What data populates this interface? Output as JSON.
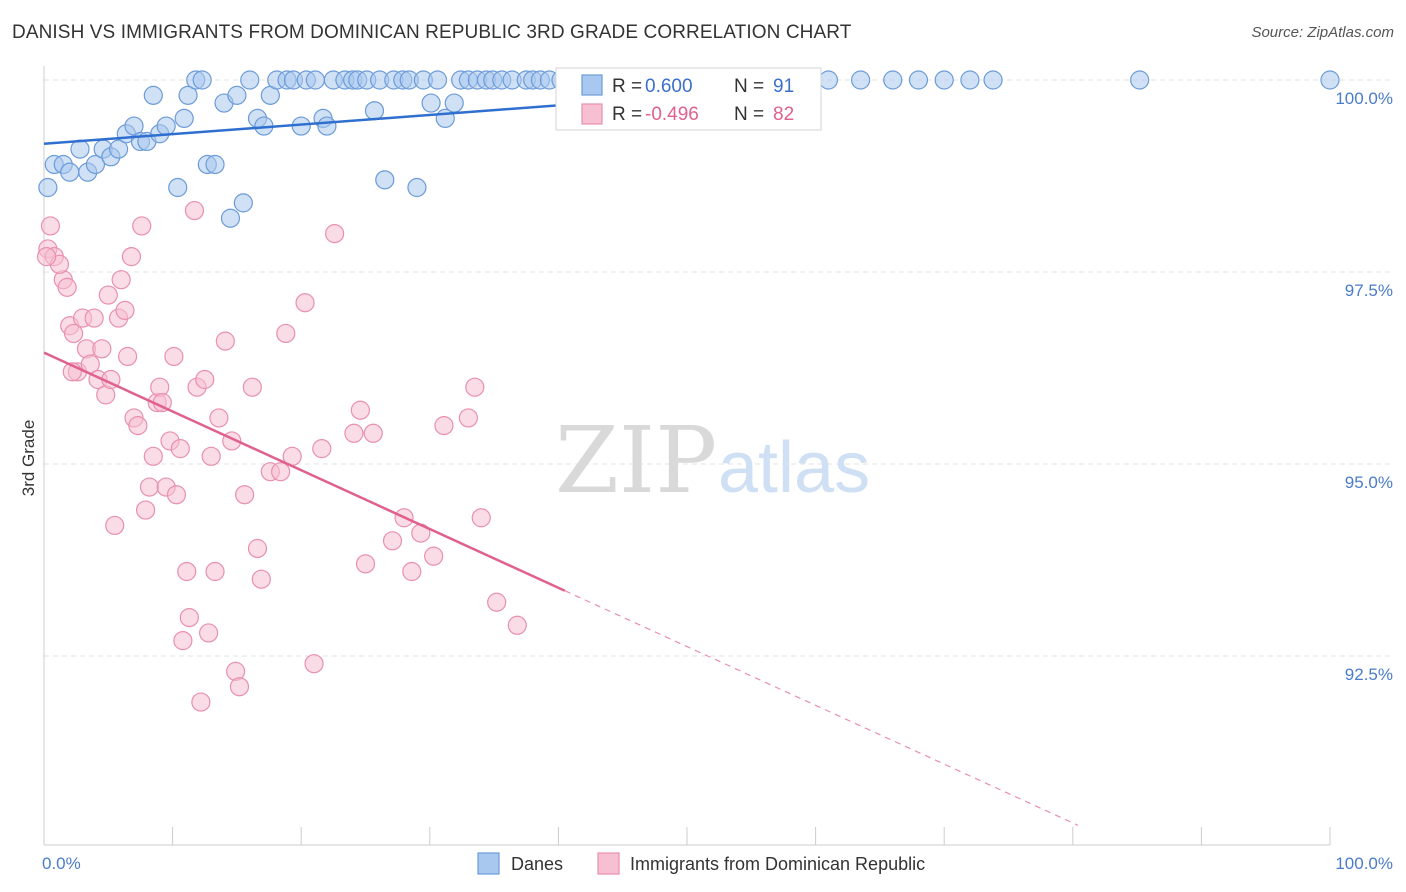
{
  "title": "DANISH VS IMMIGRANTS FROM DOMINICAN REPUBLIC 3RD GRADE CORRELATION CHART",
  "source": "Source: ZipAtlas.com",
  "watermark": {
    "zip": "ZIP",
    "atlas": "atlas"
  },
  "colors": {
    "blue_fill": "#a9c8ef",
    "blue_stroke": "#6b9bd8",
    "blue_line": "#2f6fcf",
    "pink_fill": "#f6bfd2",
    "pink_stroke": "#e98fb0",
    "pink_line": "#e0608e",
    "grid": "#e3e3e3",
    "tick_text": "#4a7cc9"
  },
  "stats": {
    "blue": {
      "r_label": "R =",
      "r_value": " 0.600",
      "n_label": "N =",
      "n_value": "91"
    },
    "pink": {
      "r_label": "R =",
      "r_value": "-0.496",
      "n_label": "N =",
      "n_value": "82"
    }
  },
  "chart_data": {
    "type": "scatter",
    "title": "DANISH VS IMMIGRANTS FROM DOMINICAN REPUBLIC 3RD GRADE CORRELATION CHART",
    "xlabel": "",
    "ylabel": "3rd Grade",
    "xlim": [
      0,
      100
    ],
    "ylim": [
      90.2,
      100.2
    ],
    "x_tick_labels": [
      {
        "value": 0,
        "label": "0.0%"
      },
      {
        "value": 100,
        "label": "100.0%"
      }
    ],
    "y_ticks": [
      {
        "value": 100.0,
        "label": "100.0%"
      },
      {
        "value": 97.5,
        "label": "97.5%"
      },
      {
        "value": 95.0,
        "label": "95.0%"
      },
      {
        "value": 92.5,
        "label": "92.5%"
      }
    ],
    "x_minor_ticks": [
      10,
      20,
      30,
      40,
      50,
      60,
      70,
      80,
      90
    ],
    "grid": true,
    "legend_position": "bottom",
    "series": [
      {
        "name": "Danes",
        "color": "#a9c8ef",
        "trend": {
          "x": [
            0,
            60
          ],
          "y": [
            99.17,
            99.92
          ],
          "extension_x": null
        },
        "points": [
          [
            0.3,
            98.6
          ],
          [
            0.8,
            98.9
          ],
          [
            1.5,
            98.9
          ],
          [
            2.0,
            98.8
          ],
          [
            2.8,
            99.1
          ],
          [
            3.4,
            98.8
          ],
          [
            4.0,
            98.9
          ],
          [
            4.6,
            99.1
          ],
          [
            5.2,
            99.0
          ],
          [
            5.8,
            99.1
          ],
          [
            6.4,
            99.3
          ],
          [
            7.0,
            99.4
          ],
          [
            7.5,
            99.2
          ],
          [
            8.0,
            99.2
          ],
          [
            8.5,
            99.8
          ],
          [
            9.0,
            99.3
          ],
          [
            9.5,
            99.4
          ],
          [
            10.4,
            98.6
          ],
          [
            10.9,
            99.5
          ],
          [
            11.2,
            99.8
          ],
          [
            11.8,
            100.0
          ],
          [
            12.3,
            100.0
          ],
          [
            12.7,
            98.9
          ],
          [
            13.3,
            98.9
          ],
          [
            14.0,
            99.7
          ],
          [
            14.5,
            98.2
          ],
          [
            15.0,
            99.8
          ],
          [
            15.5,
            98.4
          ],
          [
            16.0,
            100.0
          ],
          [
            16.6,
            99.5
          ],
          [
            17.1,
            99.4
          ],
          [
            17.6,
            99.8
          ],
          [
            18.1,
            100.0
          ],
          [
            18.9,
            100.0
          ],
          [
            19.4,
            100.0
          ],
          [
            20.0,
            99.4
          ],
          [
            20.4,
            100.0
          ],
          [
            21.1,
            100.0
          ],
          [
            21.7,
            99.5
          ],
          [
            22.0,
            99.4
          ],
          [
            22.5,
            100.0
          ],
          [
            23.4,
            100.0
          ],
          [
            24.0,
            100.0
          ],
          [
            24.4,
            100.0
          ],
          [
            25.1,
            100.0
          ],
          [
            25.7,
            99.6
          ],
          [
            26.1,
            100.0
          ],
          [
            26.5,
            98.7
          ],
          [
            27.2,
            100.0
          ],
          [
            27.9,
            100.0
          ],
          [
            28.4,
            100.0
          ],
          [
            29.0,
            98.6
          ],
          [
            29.5,
            100.0
          ],
          [
            30.1,
            99.7
          ],
          [
            30.6,
            100.0
          ],
          [
            31.2,
            99.5
          ],
          [
            31.9,
            99.7
          ],
          [
            32.4,
            100.0
          ],
          [
            33.0,
            100.0
          ],
          [
            33.7,
            100.0
          ],
          [
            34.4,
            100.0
          ],
          [
            34.9,
            100.0
          ],
          [
            35.6,
            100.0
          ],
          [
            36.4,
            100.0
          ],
          [
            37.5,
            100.0
          ],
          [
            38.0,
            100.0
          ],
          [
            38.6,
            100.0
          ],
          [
            39.3,
            100.0
          ],
          [
            40.2,
            100.0
          ],
          [
            41.0,
            100.0
          ],
          [
            42.0,
            100.0
          ],
          [
            43.0,
            100.0
          ],
          [
            44.5,
            100.0
          ],
          [
            46.0,
            100.0
          ],
          [
            47.5,
            100.0
          ],
          [
            49.0,
            100.0
          ],
          [
            50.5,
            100.0
          ],
          [
            52.0,
            100.0
          ],
          [
            53.5,
            100.0
          ],
          [
            55.0,
            100.0
          ],
          [
            57.0,
            100.0
          ],
          [
            59.0,
            100.0
          ],
          [
            61.0,
            100.0
          ],
          [
            63.5,
            100.0
          ],
          [
            66.0,
            100.0
          ],
          [
            68.0,
            100.0
          ],
          [
            70.0,
            100.0
          ],
          [
            72.0,
            100.0
          ],
          [
            73.8,
            100.0
          ],
          [
            85.2,
            100.0
          ],
          [
            100.0,
            100.0
          ]
        ]
      },
      {
        "name": "Immigrants from Dominican Republic",
        "color": "#f6bfd2",
        "trend": {
          "x": [
            0,
            40.5
          ],
          "y": [
            96.45,
            93.35
          ],
          "extension_x": [
            40.5,
            80.4
          ]
        },
        "points": [
          [
            0.3,
            97.8
          ],
          [
            0.5,
            98.1
          ],
          [
            0.8,
            97.7
          ],
          [
            1.5,
            97.4
          ],
          [
            1.8,
            97.3
          ],
          [
            2.0,
            96.8
          ],
          [
            2.3,
            96.7
          ],
          [
            2.6,
            96.2
          ],
          [
            3.0,
            96.9
          ],
          [
            3.3,
            96.5
          ],
          [
            3.6,
            96.3
          ],
          [
            3.9,
            96.9
          ],
          [
            4.2,
            96.1
          ],
          [
            4.5,
            96.5
          ],
          [
            4.8,
            95.9
          ],
          [
            5.0,
            97.2
          ],
          [
            5.2,
            96.1
          ],
          [
            5.5,
            94.2
          ],
          [
            5.8,
            96.9
          ],
          [
            6.0,
            97.4
          ],
          [
            6.3,
            97.0
          ],
          [
            6.5,
            96.4
          ],
          [
            6.8,
            97.7
          ],
          [
            7.0,
            95.6
          ],
          [
            7.3,
            95.5
          ],
          [
            7.6,
            98.1
          ],
          [
            7.9,
            94.4
          ],
          [
            8.2,
            94.7
          ],
          [
            8.5,
            95.1
          ],
          [
            8.8,
            95.8
          ],
          [
            9.0,
            96.0
          ],
          [
            9.2,
            95.8
          ],
          [
            9.5,
            94.7
          ],
          [
            9.8,
            95.3
          ],
          [
            10.1,
            96.4
          ],
          [
            10.3,
            94.6
          ],
          [
            10.6,
            95.2
          ],
          [
            10.8,
            92.7
          ],
          [
            11.1,
            93.6
          ],
          [
            11.3,
            93.0
          ],
          [
            11.7,
            98.3
          ],
          [
            11.9,
            96.0
          ],
          [
            12.2,
            91.9
          ],
          [
            12.5,
            96.1
          ],
          [
            12.8,
            92.8
          ],
          [
            13.0,
            95.1
          ],
          [
            13.3,
            93.6
          ],
          [
            13.6,
            95.6
          ],
          [
            14.1,
            96.6
          ],
          [
            14.6,
            95.3
          ],
          [
            14.9,
            92.3
          ],
          [
            15.2,
            92.1
          ],
          [
            15.6,
            94.6
          ],
          [
            16.2,
            96.0
          ],
          [
            16.6,
            93.9
          ],
          [
            16.9,
            93.5
          ],
          [
            17.6,
            94.9
          ],
          [
            18.4,
            94.9
          ],
          [
            18.8,
            96.7
          ],
          [
            19.3,
            95.1
          ],
          [
            20.3,
            97.1
          ],
          [
            21.0,
            92.4
          ],
          [
            21.6,
            95.2
          ],
          [
            22.6,
            98.0
          ],
          [
            24.1,
            95.4
          ],
          [
            24.6,
            95.7
          ],
          [
            25.0,
            93.7
          ],
          [
            25.6,
            95.4
          ],
          [
            27.1,
            94.0
          ],
          [
            28.0,
            94.3
          ],
          [
            28.6,
            93.6
          ],
          [
            29.3,
            94.1
          ],
          [
            30.3,
            93.8
          ],
          [
            31.1,
            95.5
          ],
          [
            33.0,
            95.6
          ],
          [
            33.5,
            96.0
          ],
          [
            34.0,
            94.3
          ],
          [
            35.2,
            93.2
          ],
          [
            36.8,
            92.9
          ],
          [
            1.2,
            97.6
          ],
          [
            0.2,
            97.7
          ],
          [
            2.2,
            96.2
          ]
        ]
      }
    ]
  },
  "legend": [
    {
      "name": "Danes",
      "color": "#a9c8ef",
      "stroke": "#6b9bd8"
    },
    {
      "name": "Immigrants from Dominican Republic",
      "color": "#f6bfd2",
      "stroke": "#e98fb0"
    }
  ]
}
